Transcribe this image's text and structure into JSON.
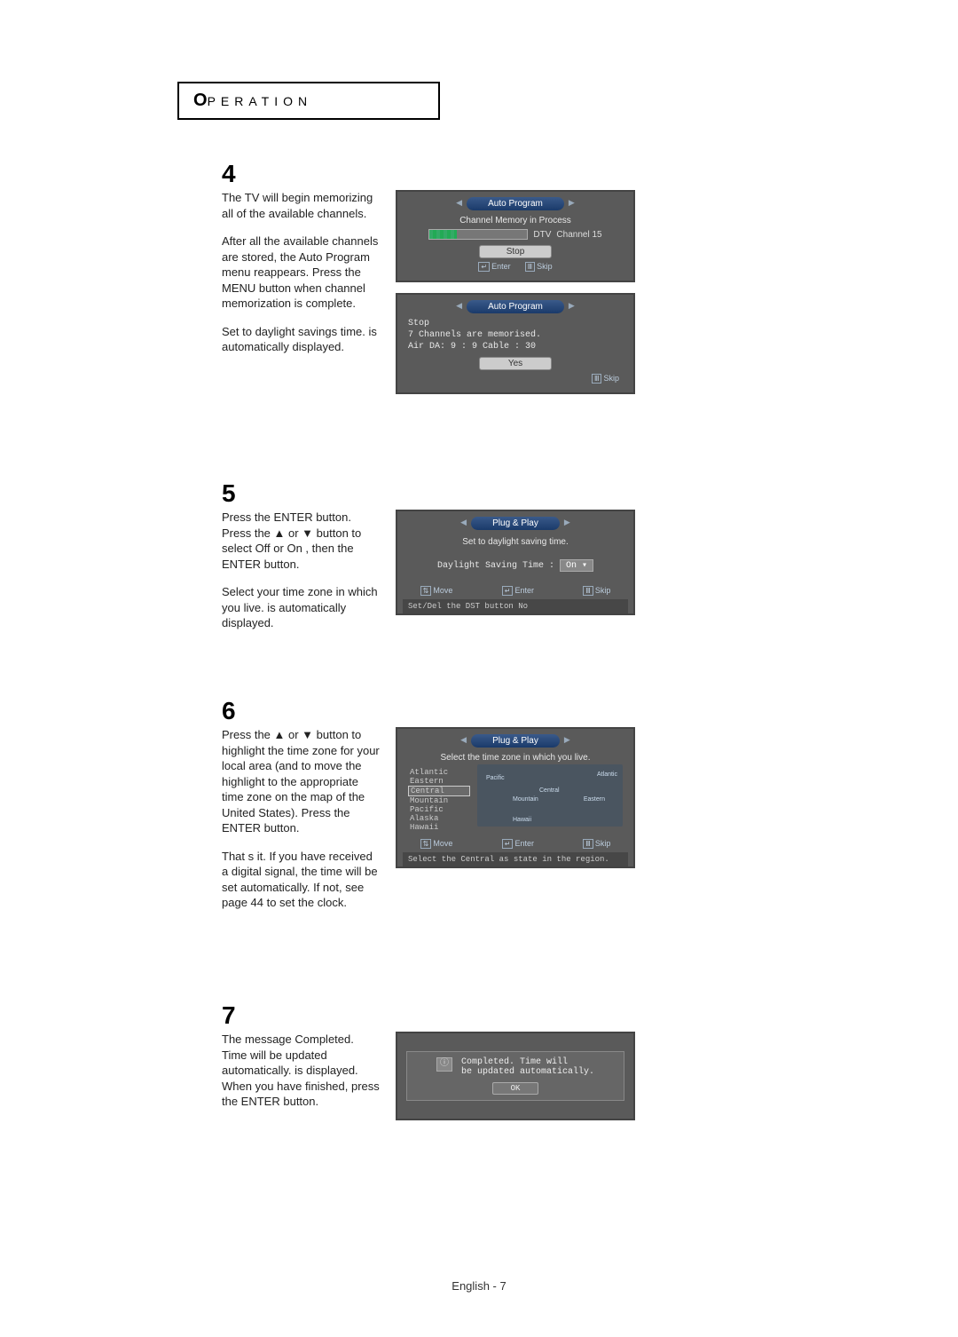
{
  "header": {
    "first": "O",
    "rest": "PERATION"
  },
  "step4": {
    "num": "4",
    "p1": "The TV will begin memorizing all of the available channels.",
    "p2": "After all the available channels are stored, the Auto Program menu reappears. Press the MENU button when channel memorization is complete.",
    "p3": "Set to daylight savings time. is automatically displayed.",
    "tv1": {
      "title": "Auto Program",
      "line1": "Channel Memory in Process",
      "prog_left_label": "DTV",
      "prog_right": "Channel   15",
      "btn": "Stop",
      "foot_enter": "Enter",
      "foot_skip": "Skip"
    },
    "tv2": {
      "title": "Auto Program",
      "l1": "Stop",
      "l2": "7 Channels are memorised.",
      "l3": "Air  DA:  9 : 9  Cable : 30",
      "btn": "Yes",
      "foot_skip": "Skip"
    }
  },
  "step5": {
    "num": "5",
    "p1": "Press the ENTER button. Press the ▲ or ▼ button to select Off or On , then the ENTER button.",
    "p2": "Select your time zone in which you live. is automatically displayed.",
    "tv": {
      "title": "Plug & Play",
      "line1": "Set to daylight saving time.",
      "label": "Daylight Saving Time :",
      "value": "On",
      "foot_move": "Move",
      "foot_enter": "Enter",
      "foot_skip": "Skip",
      "note": "Set/Del the DST button  No"
    }
  },
  "step6": {
    "num": "6",
    "p1": "Press the ▲ or ▼ button to highlight the time zone for your local area (and to move the highlight to the appropriate time zone on the map of the United States). Press the ENTER button.",
    "p2": "That s it. If you have received a digital signal, the time will be set automatically. If not, see page 44 to set the clock.",
    "tv": {
      "title": "Plug & Play",
      "line1": "Select the time zone in which you live.",
      "tz": [
        "Atlantic",
        "Eastern",
        "Central",
        "Mountain",
        "Pacific",
        "Alaska",
        "Hawaii"
      ],
      "sel_index": 2,
      "map": {
        "l1": "Pacific",
        "l2": "Central",
        "l3": "Atlantic",
        "l4": "Mountain",
        "l5": "Eastern",
        "l6": "Hawaii"
      },
      "foot_move": "Move",
      "foot_enter": "Enter",
      "foot_skip": "Skip",
      "note": "Select the Central   as     state  in the region."
    }
  },
  "step7": {
    "num": "7",
    "p1": "The message Completed. Time will be updated automatically. is displayed. When you have finished, press the ENTER button.",
    "tv": {
      "l1": "Completed.   Time will",
      "l2": "be updated automatically.",
      "btn": "OK"
    }
  },
  "footer": "English -   7"
}
